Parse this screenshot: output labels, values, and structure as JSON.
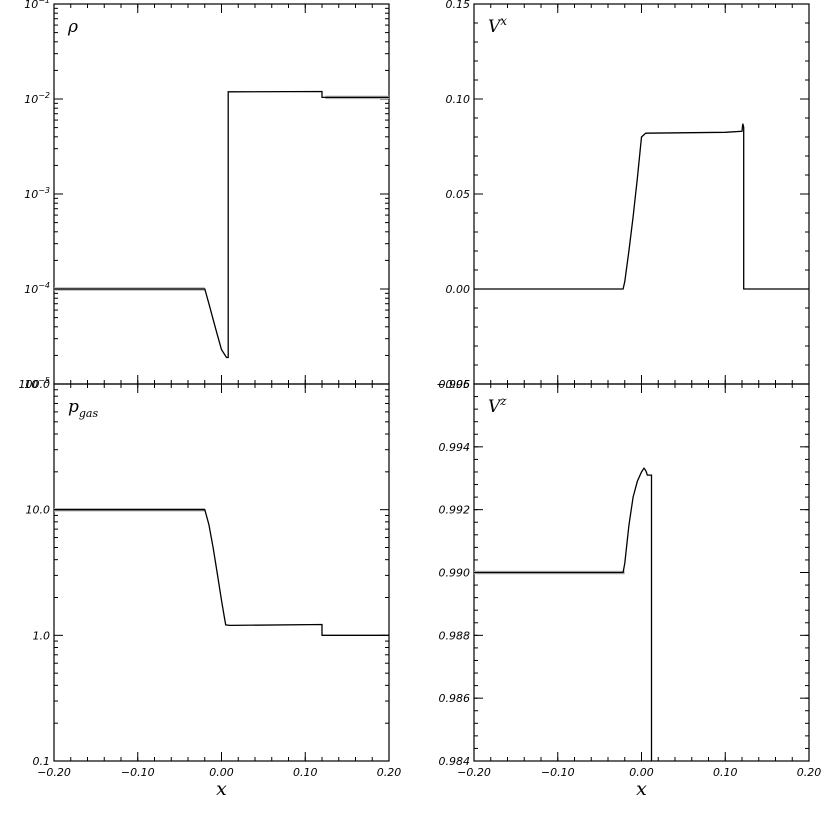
{
  "chart_data": [
    {
      "type": "line",
      "panel": "top-left",
      "label": "ρ",
      "yscale": "log",
      "xlim": [
        -0.2,
        0.2
      ],
      "ylim": [
        1e-05,
        0.1
      ],
      "yticks": [
        {
          "value": 0.1,
          "mant": "10",
          "exp": "−1"
        },
        {
          "value": 0.01,
          "mant": "10",
          "exp": "−2"
        },
        {
          "value": 0.001,
          "mant": "10",
          "exp": "−3"
        },
        {
          "value": 0.0001,
          "mant": "10",
          "exp": "−4"
        },
        {
          "value": 1e-05,
          "mant": "10",
          "exp": "−5"
        }
      ],
      "series": [
        {
          "style": "exact",
          "segments": [
            {
              "x": [
                -0.2,
                -0.02
              ],
              "y": [
                0.0001,
                0.0001
              ]
            },
            {
              "x": [
                0.124,
                0.2
              ],
              "y": [
                0.0104,
                0.0104
              ]
            }
          ]
        },
        {
          "style": "numerical",
          "x": [
            -0.2,
            -0.02,
            -0.015,
            -0.01,
            -0.005,
            0.0,
            0.006,
            0.008,
            0.008,
            0.01,
            0.12,
            0.12,
            0.2
          ],
          "y": [
            0.0001,
            0.0001,
            7e-05,
            4.8e-05,
            3.3e-05,
            2.3e-05,
            1.9e-05,
            1.9e-05,
            0.0119,
            0.0119,
            0.012,
            0.0104,
            0.0104
          ]
        }
      ]
    },
    {
      "type": "line",
      "panel": "top-right",
      "label": "V",
      "label_sup": "x",
      "yscale": "linear",
      "xlim": [
        -0.2,
        0.2
      ],
      "ylim": [
        -0.05,
        0.15
      ],
      "yticks": [
        {
          "value": -0.05,
          "text": "−0.05"
        },
        {
          "value": 0.0,
          "text": "0.00"
        },
        {
          "value": 0.05,
          "text": "0.05"
        },
        {
          "value": 0.1,
          "text": "0.10"
        },
        {
          "value": 0.15,
          "text": "0.15"
        }
      ],
      "series": [
        {
          "style": "exact",
          "segments": []
        },
        {
          "style": "numerical",
          "x": [
            -0.2,
            -0.022,
            -0.02,
            -0.015,
            -0.01,
            -0.005,
            0.0,
            0.005,
            0.1,
            0.12,
            0.121,
            0.122,
            0.122,
            0.2
          ],
          "y": [
            0.0,
            0.0,
            0.004,
            0.02,
            0.038,
            0.058,
            0.08,
            0.082,
            0.0825,
            0.083,
            0.087,
            0.085,
            0.0,
            0.0
          ]
        }
      ]
    },
    {
      "type": "line",
      "panel": "bottom-left",
      "label": "p",
      "label_sub": "gas",
      "yscale": "log",
      "xlim": [
        -0.2,
        0.2
      ],
      "ylim": [
        0.1,
        100
      ],
      "yticks": [
        {
          "value": 100,
          "text": "100.0"
        },
        {
          "value": 10,
          "text": "10.0"
        },
        {
          "value": 1,
          "text": "1.0"
        },
        {
          "value": 0.1,
          "text": "0.1"
        }
      ],
      "series": [
        {
          "style": "exact",
          "segments": [
            {
              "x": [
                -0.2,
                -0.02
              ],
              "y": [
                10.0,
                10.0
              ]
            }
          ]
        },
        {
          "style": "numerical",
          "x": [
            -0.2,
            -0.02,
            -0.015,
            -0.01,
            -0.005,
            0.0,
            0.003,
            0.005,
            0.01,
            0.12,
            0.12,
            0.2
          ],
          "y": [
            10.0,
            10.0,
            7.6,
            5.0,
            3.1,
            1.9,
            1.45,
            1.21,
            1.2,
            1.22,
            1.0,
            1.0
          ]
        }
      ]
    },
    {
      "type": "line",
      "panel": "bottom-right",
      "label": "V",
      "label_sup": "z",
      "yscale": "linear",
      "xlim": [
        -0.2,
        0.2
      ],
      "ylim": [
        0.984,
        0.996
      ],
      "yticks": [
        {
          "value": 0.984,
          "text": "0.984"
        },
        {
          "value": 0.986,
          "text": "0.986"
        },
        {
          "value": 0.988,
          "text": "0.988"
        },
        {
          "value": 0.99,
          "text": "0.990"
        },
        {
          "value": 0.992,
          "text": "0.992"
        },
        {
          "value": 0.994,
          "text": "0.994"
        },
        {
          "value": 0.996,
          "text": "0.996"
        }
      ],
      "series": [
        {
          "style": "exact",
          "segments": [
            {
              "x": [
                -0.2,
                -0.02
              ],
              "y": [
                0.99,
                0.99
              ]
            }
          ]
        },
        {
          "style": "numerical",
          "x": [
            -0.2,
            -0.022,
            -0.02,
            -0.015,
            -0.01,
            -0.005,
            0.0,
            0.003,
            0.005,
            0.007,
            0.012,
            0.012,
            0.012
          ],
          "y": [
            0.99,
            0.99,
            0.9903,
            0.9915,
            0.9924,
            0.9929,
            0.9932,
            0.99332,
            0.99325,
            0.9931,
            0.9931,
            0.9931,
            0.984
          ]
        }
      ]
    }
  ],
  "xticks": [
    {
      "value": -0.2,
      "text": "−0.20"
    },
    {
      "value": -0.1,
      "text": "−0.10"
    },
    {
      "value": 0.0,
      "text": "0.00"
    },
    {
      "value": 0.1,
      "text": "0.10"
    },
    {
      "value": 0.2,
      "text": "0.20"
    }
  ],
  "xlabel": "x"
}
